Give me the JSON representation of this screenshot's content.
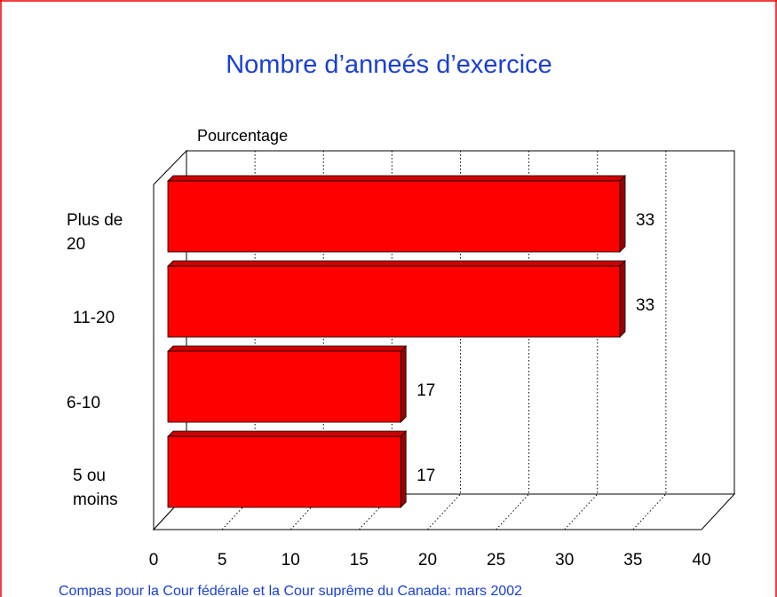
{
  "chart_data": {
    "type": "bar",
    "orientation": "horizontal",
    "title": "Nombre d’anneés d’exercice",
    "axis_label": "Pourcentage",
    "categories": [
      "Plus de 20",
      "11-20",
      "6-10",
      "5 ou moins"
    ],
    "values": [
      33,
      33,
      17,
      17
    ],
    "color": "#ff0000",
    "xlim": [
      0,
      40
    ],
    "xticks": [
      0,
      5,
      10,
      15,
      20,
      25,
      30,
      35,
      40
    ],
    "grid": true,
    "source": "Compas pour la Cour fédérale et la Cour suprême du Canada: mars 2002"
  }
}
